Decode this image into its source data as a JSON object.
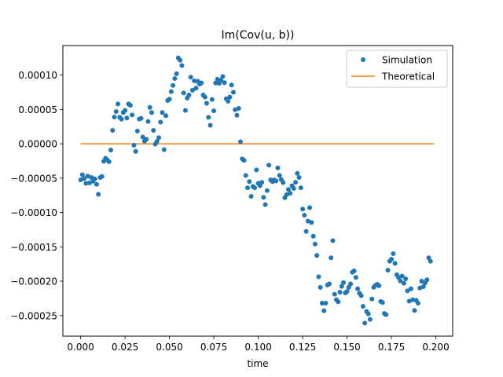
{
  "chart_data": {
    "type": "scatter",
    "title": "Im(Cov(u, b))",
    "xlabel": "time",
    "ylabel": "",
    "xlim": [
      -0.01,
      0.2095
    ],
    "ylim": [
      -0.00028,
      0.000143
    ],
    "xticks": [
      0.0,
      0.025,
      0.05,
      0.075,
      0.1,
      0.125,
      0.15,
      0.175,
      0.2
    ],
    "xtick_labels": [
      "0.000",
      "0.025",
      "0.050",
      "0.075",
      "0.100",
      "0.125",
      "0.150",
      "0.175",
      "0.200"
    ],
    "yticks": [
      0.0001,
      5e-05,
      0.0,
      -5e-05,
      -0.0001,
      -0.00015,
      -0.0002,
      -0.00025
    ],
    "ytick_labels": [
      "0.00010",
      "0.00005",
      "0.00000",
      "−0.00005",
      "−0.00010",
      "−0.00015",
      "−0.00020",
      "−0.00025"
    ],
    "legend_position": "top-right",
    "grid": false,
    "series": [
      {
        "name": "Simulation",
        "style": "points",
        "color": "#1f77b4",
        "x_start": 0.0,
        "x_step": 0.001,
        "values": [
          -5.25e-05,
          -4.5e-05,
          -5.05e-05,
          -5.75e-05,
          -4.7e-05,
          -5.7e-05,
          -4.9e-05,
          -5.45e-05,
          -5.1e-05,
          -5.9e-05,
          -7.35e-05,
          -4.9e-05,
          -4.75e-05,
          -2.55e-05,
          -2.1e-05,
          -2.35e-05,
          -2.6e-05,
          -9e-06,
          1.95e-05,
          3.9e-05,
          4.7e-05,
          5.8e-05,
          3.85e-05,
          3.6e-05,
          4.55e-05,
          4.85e-05,
          3.75e-05,
          5.8e-05,
          5.6e-05,
          4.2e-05,
          -2e-06,
          -1.1e-05,
          1.85e-05,
          3.6e-05,
          3.7e-05,
          1e-05,
          4e-06,
          6.5e-06,
          3.25e-05,
          5.3e-05,
          4.55e-05,
          1.95e-05,
          -5e-07,
          3.5e-06,
          9e-06,
          3.15e-05,
          4.55e-05,
          -8.5e-06,
          4.1e-05,
          6.3e-05,
          6.5e-05,
          7.6e-05,
          8.5e-05,
          9.5e-05,
          0.000102,
          0.000125,
          0.0001215,
          0.000114,
          7.4e-05,
          4.85e-05,
          6.65e-05,
          7.1e-05,
          9.7e-05,
          7.8e-05,
          9.15e-05,
          8.1e-05,
          9.1e-05,
          8.7e-05,
          8.85e-05,
          7.1e-05,
          6.8e-05,
          5.9e-05,
          3.85e-05,
          2.7e-05,
          6.45e-05,
          4.8e-05,
          8.85e-05,
          9.4e-05,
          8.8e-05,
          9.25e-05,
          9.8e-05,
          8.9e-05,
          6.55e-05,
          6.2e-05,
          6.8e-05,
          8.55e-05,
          7.5e-05,
          4.95e-05,
          4.15e-05,
          5.15e-05,
          3e-06,
          -2.2e-05,
          -2.4e-05,
          -4.6e-05,
          -6.4e-05,
          -5.5e-05,
          -7.65e-05,
          -6.2e-05,
          -6.4e-05,
          -3.8e-05,
          -5.75e-05,
          -6.1e-05,
          -5.6e-05,
          -7.8e-05,
          -8.85e-05,
          -6.8e-05,
          -3.1e-05,
          -5.25e-05,
          -5.5e-05,
          -5.25e-05,
          -5.4e-05,
          -3.5e-05,
          -4.6e-05,
          -5.2e-05,
          -5.65e-05,
          -7.85e-05,
          -7.4e-05,
          -6.65e-05,
          -7.2e-05,
          -6.1e-05,
          -6.5e-05,
          -5.6e-05,
          -4.3e-05,
          -4.9e-05,
          -6.4e-05,
          -9.5e-05,
          -0.000104,
          -0.0001275,
          -0.0001125,
          -9.3e-05,
          -0.0001145,
          -0.0001345,
          -0.000146,
          -0.0001625,
          -0.0001935,
          -0.000209,
          -0.000232,
          -0.000243,
          -0.000232,
          -0.0002055,
          -0.000204,
          -0.000166,
          -0.000141,
          -0.000219,
          -0.000227,
          -0.00023,
          -0.000216,
          -0.0002075,
          -0.000202,
          -0.000217,
          -0.000215,
          -0.000209,
          -0.000204,
          -0.000187,
          -0.000185,
          -0.0001945,
          -0.000211,
          -0.0002175,
          -0.000221,
          -0.0002365,
          -0.000261,
          -0.000244,
          -0.0002475,
          -0.0002555,
          -0.000226,
          -0.000209,
          -0.000206,
          -0.0002045,
          -0.0002065,
          -0.0002295,
          -0.000231,
          -0.000247,
          -0.0002485,
          -0.000184,
          -0.000171,
          -0.000168,
          -0.00016,
          -0.000174,
          -0.0001905,
          -0.0001945,
          -0.0001995,
          -0.0001925,
          -0.000203,
          -0.0001965,
          -0.000214,
          -0.000229,
          -0.000211,
          -0.000227,
          -0.0002425,
          -0.000228,
          -0.000232,
          -0.00021,
          -0.0002,
          -0.000208,
          -0.0002025,
          -0.000198,
          -0.000166,
          -0.000171
        ]
      },
      {
        "name": "Theoretical",
        "style": "line",
        "color": "#ff7f0e",
        "x": [
          0.0,
          0.199
        ],
        "values": [
          0.0,
          0.0
        ]
      }
    ]
  }
}
